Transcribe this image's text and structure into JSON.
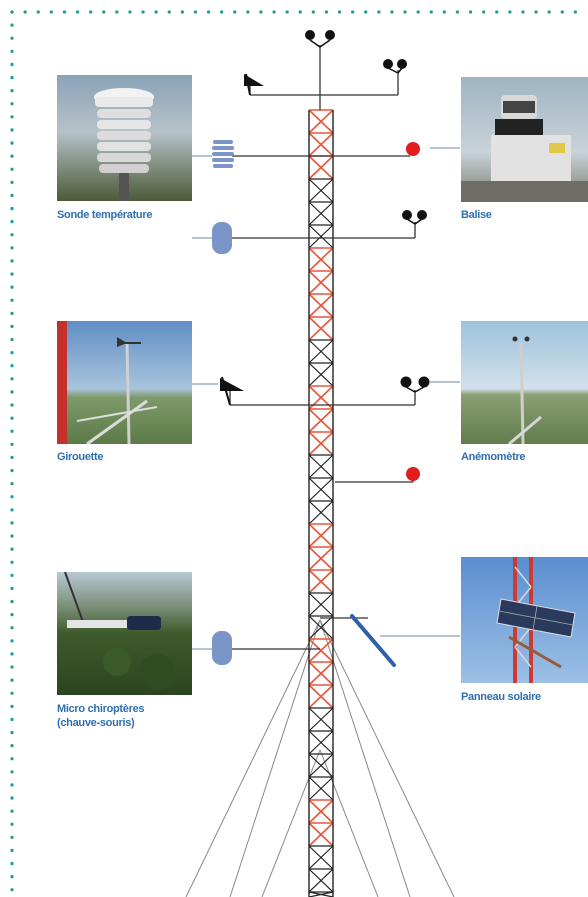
{
  "colors": {
    "dotted_border": "#1f9e8c",
    "mast_red": "#e5563a",
    "mast_black": "#222222",
    "sensor_blue": "#7b95c8",
    "beacon_red": "#e01e1e",
    "caption_blue": "#2f6fb0",
    "connector_line": "#8aa0b4"
  },
  "sensors": [
    {
      "id": "temperature",
      "label": "Sonde température",
      "icon": "temperature-probe-icon"
    },
    {
      "id": "beacon",
      "label": "Balise",
      "icon": "beacon-light-icon"
    },
    {
      "id": "vane",
      "label": "Girouette",
      "icon": "wind-vane-icon"
    },
    {
      "id": "anemometer",
      "label": "Anémomètre",
      "icon": "anemometer-cups-icon"
    },
    {
      "id": "microphone",
      "label": "Micro chiroptères",
      "label2": "(chauve-souris)",
      "icon": "bat-microphone-icon"
    },
    {
      "id": "solar",
      "label": "Panneau solaire",
      "icon": "solar-panel-icon"
    }
  ]
}
